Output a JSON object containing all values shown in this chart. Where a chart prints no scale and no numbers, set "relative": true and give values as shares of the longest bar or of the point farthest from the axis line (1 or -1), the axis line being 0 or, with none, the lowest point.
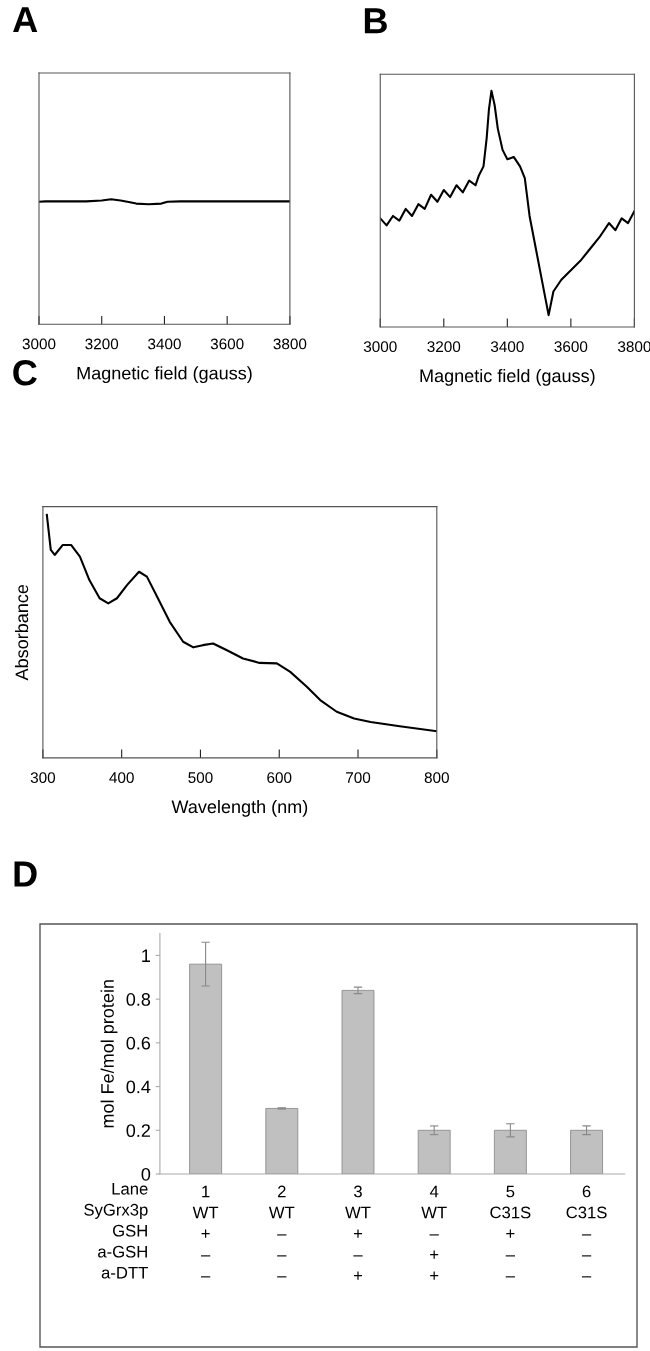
{
  "chart_data": [
    {
      "type": "line",
      "title": "A",
      "xlabel": "Magnetic field (gauss)",
      "relative": true,
      "tick_labels": "x",
      "xlim": [
        3000,
        3800
      ],
      "xticks": [
        3000,
        3200,
        3400,
        3600,
        3800
      ],
      "color": "#000000",
      "x": [
        3000,
        3020,
        3150,
        3200,
        3230,
        3260,
        3290,
        3310,
        3350,
        3390,
        3410,
        3450,
        3800
      ],
      "values": [
        0.98,
        0.983,
        0.983,
        0.99,
        1.0,
        0.99,
        0.975,
        0.965,
        0.96,
        0.965,
        0.98,
        0.983,
        0.983
      ]
    },
    {
      "type": "line",
      "title": "B",
      "xlabel": "Magnetic field (gauss)",
      "relative": true,
      "tick_labels": "x",
      "xlim": [
        3000,
        3800
      ],
      "xticks": [
        3000,
        3200,
        3400,
        3600,
        3800
      ],
      "color": "#000000",
      "x": [
        3000,
        3020,
        3040,
        3060,
        3080,
        3100,
        3120,
        3140,
        3160,
        3180,
        3200,
        3220,
        3240,
        3260,
        3280,
        3300,
        3310,
        3325,
        3335,
        3342,
        3350,
        3360,
        3370,
        3385,
        3400,
        3420,
        3440,
        3455,
        3470,
        3490,
        3510,
        3520,
        3530,
        3545,
        3570,
        3600,
        3630,
        3660,
        3690,
        3720,
        3740,
        3760,
        3780,
        3800
      ],
      "values": [
        0.46,
        0.43,
        0.47,
        0.45,
        0.5,
        0.47,
        0.52,
        0.5,
        0.56,
        0.53,
        0.58,
        0.55,
        0.6,
        0.57,
        0.62,
        0.6,
        0.64,
        0.68,
        0.8,
        0.92,
        1.0,
        0.94,
        0.84,
        0.75,
        0.71,
        0.72,
        0.68,
        0.63,
        0.47,
        0.33,
        0.19,
        0.12,
        0.05,
        0.15,
        0.2,
        0.24,
        0.28,
        0.33,
        0.38,
        0.44,
        0.41,
        0.46,
        0.44,
        0.49
      ]
    },
    {
      "type": "line",
      "title": "C",
      "xlabel": "Wavelength (nm)",
      "ylabel": "Absorbance",
      "relative": true,
      "tick_labels": "x",
      "xlim": [
        300,
        800
      ],
      "xticks": [
        300,
        400,
        500,
        600,
        700,
        800
      ],
      "color": "#000000",
      "x": [
        305,
        310,
        315,
        325,
        336,
        347,
        359,
        372,
        383,
        394,
        407,
        422,
        432,
        445,
        461,
        478,
        491,
        503,
        516,
        533,
        554,
        575,
        597,
        614,
        635,
        652,
        673,
        695,
        716,
        753,
        800
      ],
      "values": [
        1.0,
        0.856,
        0.835,
        0.876,
        0.876,
        0.828,
        0.732,
        0.657,
        0.636,
        0.657,
        0.712,
        0.766,
        0.746,
        0.663,
        0.56,
        0.478,
        0.455,
        0.464,
        0.471,
        0.444,
        0.409,
        0.391,
        0.389,
        0.354,
        0.293,
        0.238,
        0.19,
        0.162,
        0.148,
        0.13,
        0.11
      ]
    },
    {
      "type": "bar",
      "title": "D",
      "ylabel": "mol Fe/mol protein",
      "xlabel": "Lane\nSyGrx3p\nGSH\na-GSH\na-DTT",
      "color": "#c0c0c0",
      "categories": [
        "1\nWT\n+\n–\n–",
        "2\nWT\n–\n–\n–",
        "3\nWT\n+\n–\n+",
        "4\nWT\n–\n+\n+",
        "5\nC31S\n+\n–\n–",
        "6\nC31S\n–\n–\n–"
      ],
      "values": [
        0.96,
        0.3,
        0.84,
        0.2,
        0.2,
        0.2
      ],
      "errors": [
        0.1,
        0.003,
        0.015,
        0.02,
        0.03,
        0.02
      ],
      "ylim": [
        0,
        1.1
      ],
      "yticks": [
        0,
        0.2,
        0.4,
        0.6,
        0.8,
        1
      ]
    }
  ]
}
